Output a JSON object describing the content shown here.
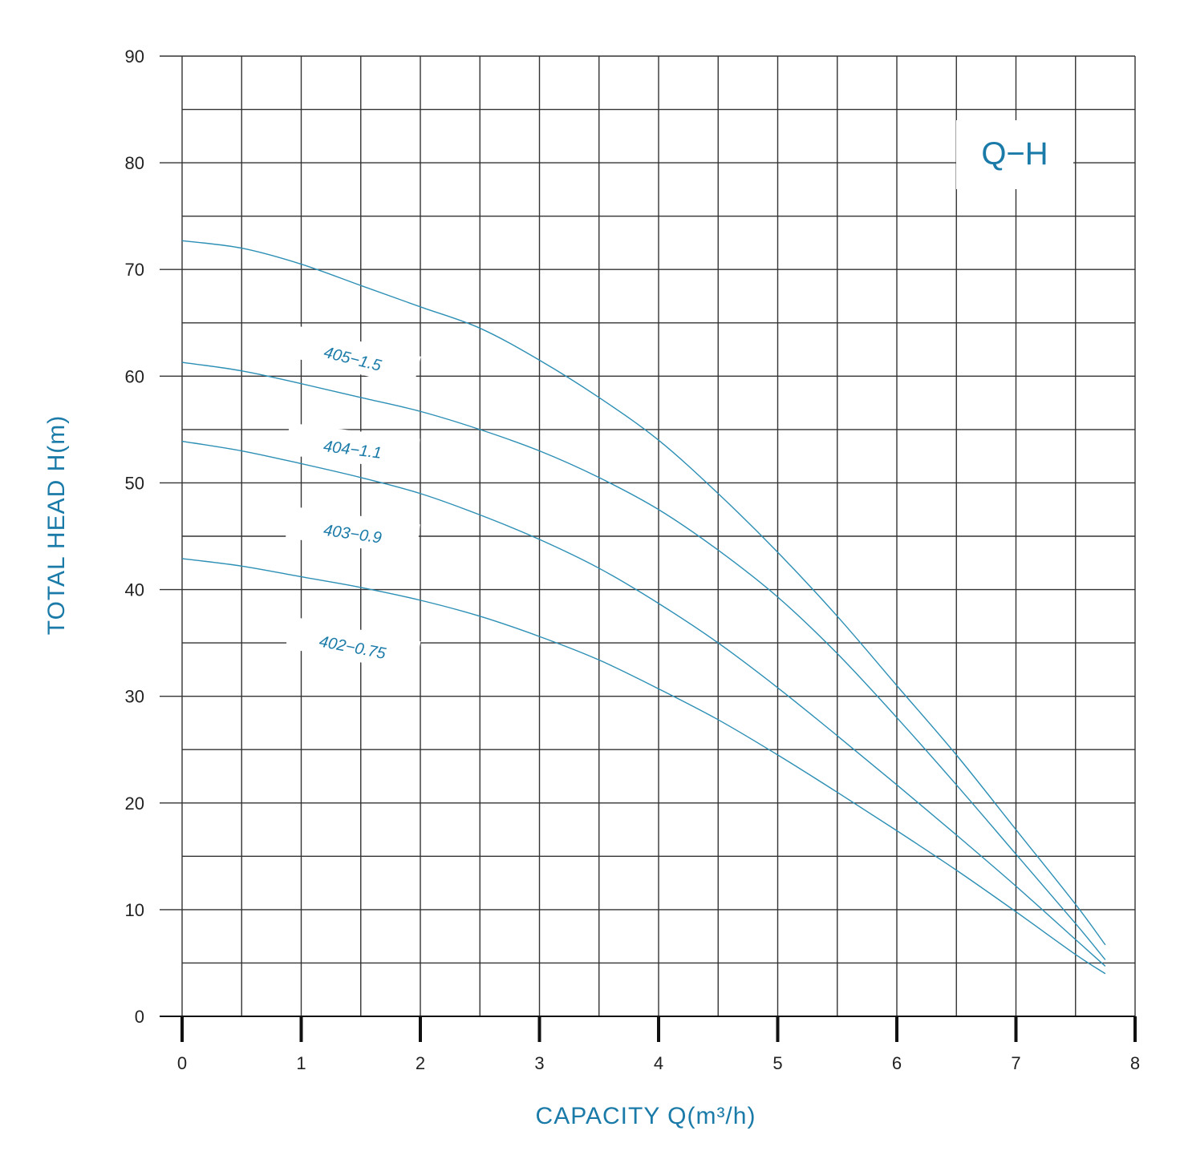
{
  "chart_data": {
    "type": "line",
    "title": "Q−H",
    "xlabel": "CAPACITY Q(m³/h)",
    "ylabel": "TOTAL HEAD H(m)",
    "xlim": [
      0,
      8
    ],
    "ylim": [
      0,
      90
    ],
    "x_ticks": [
      "0",
      "1",
      "2",
      "3",
      "4",
      "5",
      "6",
      "7",
      "8"
    ],
    "y_ticks": [
      "0",
      "10",
      "20",
      "30",
      "40",
      "50",
      "60",
      "70",
      "80",
      "90"
    ],
    "grid": true,
    "colors": {
      "curve": "#2c8fb5",
      "label": "#1a7aa8",
      "grid": "#333333"
    },
    "series": [
      {
        "name": "405−1.5",
        "x": [
          0,
          0.5,
          1,
          1.5,
          2,
          2.5,
          3,
          3.5,
          4,
          4.5,
          5,
          5.5,
          6,
          6.5,
          7,
          7.5,
          7.75
        ],
        "y": [
          72.7,
          72,
          70.5,
          68.5,
          66.5,
          64.5,
          61.5,
          58,
          54,
          49,
          43.5,
          37.5,
          31,
          24.5,
          17.5,
          10.5,
          6.7
        ]
      },
      {
        "name": "404−1.1",
        "x": [
          0,
          0.5,
          1,
          1.5,
          2,
          2.5,
          3,
          3.5,
          4,
          4.5,
          5,
          5.5,
          6,
          6.5,
          7,
          7.5,
          7.75
        ],
        "y": [
          61.3,
          60.5,
          59.3,
          58,
          56.7,
          55,
          53,
          50.5,
          47.5,
          43.7,
          39.3,
          34,
          28,
          21.7,
          15.2,
          8.7,
          5.3
        ]
      },
      {
        "name": "403−0.9",
        "x": [
          0,
          0.5,
          1,
          1.5,
          2,
          2.5,
          3,
          3.5,
          4,
          4.5,
          5,
          5.5,
          6,
          6.5,
          7,
          7.5,
          7.75
        ],
        "y": [
          53.9,
          53,
          51.8,
          50.5,
          49,
          47,
          44.7,
          42,
          38.7,
          35,
          30.8,
          26.3,
          21.7,
          17,
          12.2,
          7.2,
          4.7
        ]
      },
      {
        "name": "402−0.75",
        "x": [
          0,
          0.5,
          1,
          1.5,
          2,
          2.5,
          3,
          3.5,
          4,
          4.5,
          5,
          5.5,
          6,
          6.5,
          7,
          7.5,
          7.75
        ],
        "y": [
          42.9,
          42.2,
          41.2,
          40.2,
          39,
          37.5,
          35.6,
          33.4,
          30.7,
          27.8,
          24.5,
          21,
          17.4,
          13.7,
          9.8,
          5.8,
          4
        ]
      }
    ]
  }
}
